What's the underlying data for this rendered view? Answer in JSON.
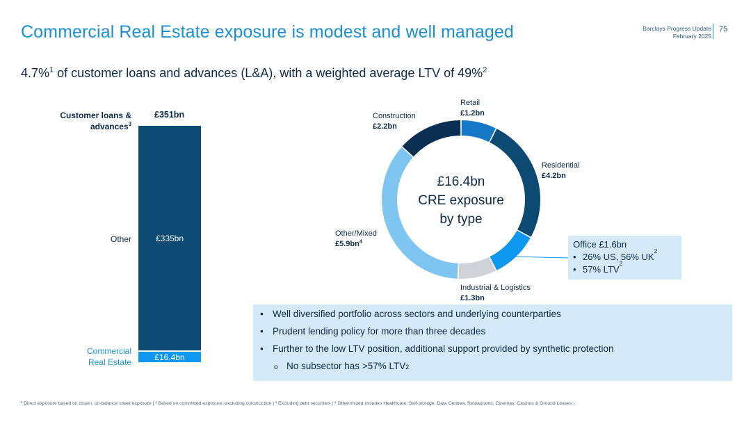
{
  "header": {
    "title": "Commercial Real Estate exposure is modest and well managed",
    "brand_line1": "Barclays Progress Update",
    "brand_line2": "February 2025",
    "page_number": "75"
  },
  "subtitle": {
    "pct": "4.7%",
    "fn1": "1",
    "text": " of customer loans and advances (L&A), with a weighted average LTV of 49%",
    "fn2": "2"
  },
  "chart_data": [
    {
      "type": "bar",
      "stacked": true,
      "title": "",
      "categories": [
        "Customer loans & advances"
      ],
      "total_label": "£351bn",
      "header_label": "Customer loans &",
      "header_label2": "advances",
      "header_footnote": "3",
      "series": [
        {
          "name": "Other",
          "values": [
            335
          ],
          "value_label": "£335bn",
          "color": "#0c4a73"
        },
        {
          "name_line1": "Commercial",
          "name_line2": "Real Estate",
          "name": "Commercial Real Estate",
          "values": [
            16.4
          ],
          "value_label": "£16.4bn",
          "color": "#0e97ef"
        }
      ]
    },
    {
      "type": "pie",
      "donut": true,
      "center_line1": "£16.4bn",
      "center_line2": "CRE exposure",
      "center_line3": "by type",
      "slices": [
        {
          "name": "Retail",
          "value": 1.2,
          "value_label": "£1.2bn",
          "color": "#1579c8"
        },
        {
          "name": "Residential",
          "value": 4.2,
          "value_label": "£4.2bn",
          "color": "#0c4a73"
        },
        {
          "name": "Office",
          "value": 1.6,
          "value_label": "£1.6bn",
          "color": "#0e97ef"
        },
        {
          "name": "Industrial & Logistics",
          "value": 1.3,
          "value_label": "£1.3bn",
          "color": "#cfd3d7"
        },
        {
          "name": "Other/Mixed",
          "value": 5.9,
          "value_label": "£5.9bn",
          "footnote": "4",
          "color": "#7fc5f1"
        },
        {
          "name": "Construction",
          "value": 2.2,
          "value_label": "£2.2bn",
          "color": "#0b2f52"
        }
      ]
    }
  ],
  "office_box": {
    "title": "Office £1.6bn",
    "bullet": "•",
    "line1": "26% US, 56% UK",
    "line1_fn": "2",
    "line2": "57% LTV",
    "line2_fn": "2"
  },
  "panel": {
    "bullet": "•",
    "sub_bullet": "o",
    "items": [
      "Well diversified portfolio across sectors and underlying counterparties",
      "Prudent lending policy for more than three decades",
      "Further to the low LTV position, additional support provided by synthetic protection"
    ],
    "sub_item": "No subsector has >57% LTV",
    "sub_item_fn": "2"
  },
  "footnote": "¹ Direct exposure based on drawn, on-balance sheet exposure | ² Based on committed exposure, excluding construction | ³ Excluding debt securities | ⁴ Other/mixed includes Healthcare, Self-storage, Data Centres, Restaurants, Cinemas, Casinos & Ground Leases |"
}
